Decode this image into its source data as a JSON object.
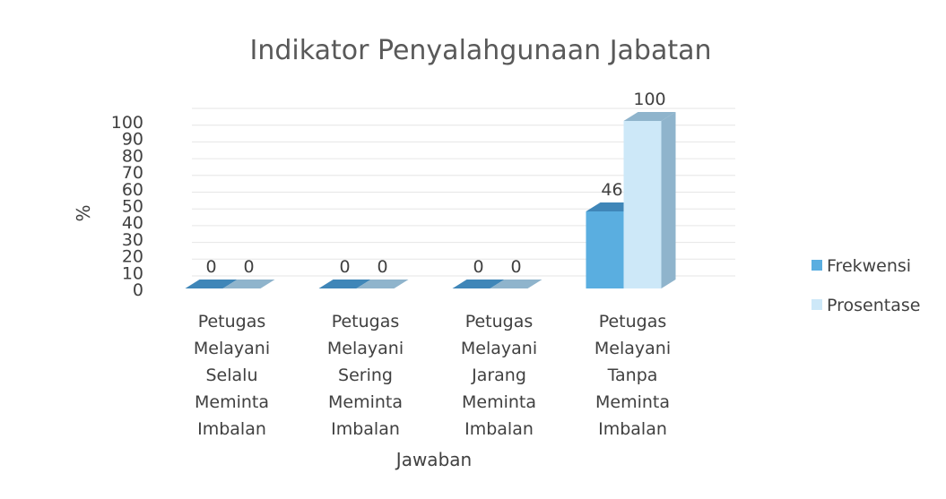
{
  "chart_data": {
    "type": "bar3d",
    "title": "Indikator Penyalahgunaan Jabatan",
    "x_label": "Jawaban",
    "y_label": "%",
    "categories": [
      "Petugas Melayani Selalu Meminta Imbalan",
      "Petugas Melayani Sering Meminta Imbalan",
      "Petugas Melayani Jarang Meminta Imbalan",
      "Petugas Melayani Tanpa Meminta Imbalan"
    ],
    "series": [
      {
        "name": "Frekwensi",
        "color": "#5aaee0",
        "side": "#3f86b8",
        "values": [
          0,
          0,
          0,
          46
        ]
      },
      {
        "name": "Prosentase",
        "color": "#cde8f8",
        "side": "#8fb4cc",
        "values": [
          0,
          0,
          0,
          100
        ]
      }
    ],
    "ylim": [
      0,
      100
    ],
    "yticks": [
      0,
      10,
      20,
      30,
      40,
      50,
      60,
      70,
      80,
      90,
      100
    ],
    "grid": true,
    "legend": "right"
  }
}
